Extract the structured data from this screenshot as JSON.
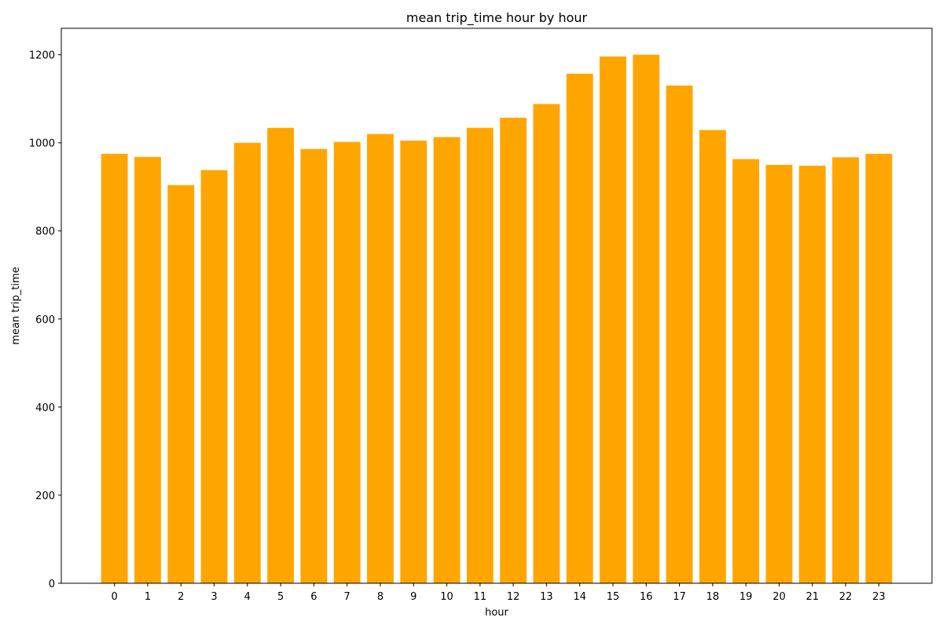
{
  "chart_data": {
    "type": "bar",
    "title": "mean trip_time hour by hour",
    "xlabel": "hour",
    "ylabel": "mean trip_time",
    "categories": [
      "0",
      "1",
      "2",
      "3",
      "4",
      "5",
      "6",
      "7",
      "8",
      "9",
      "10",
      "11",
      "12",
      "13",
      "14",
      "15",
      "16",
      "17",
      "18",
      "19",
      "20",
      "21",
      "22",
      "23"
    ],
    "values": [
      975,
      968,
      904,
      938,
      1000,
      1034,
      986,
      1002,
      1020,
      1005,
      1013,
      1034,
      1057,
      1088,
      1157,
      1196,
      1200,
      1130,
      1029,
      963,
      950,
      948,
      967,
      975
    ],
    "ylim": [
      0,
      1260
    ],
    "yticks": [
      0,
      200,
      400,
      600,
      800,
      1000,
      1200
    ],
    "grid": false,
    "legend": "none",
    "bar_color": "#ffa500"
  }
}
